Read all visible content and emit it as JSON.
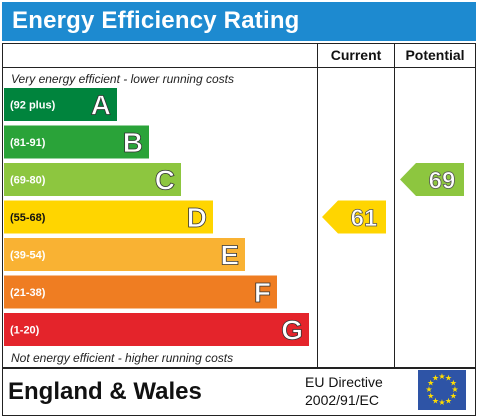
{
  "title": "Energy Efficiency Rating",
  "columns": {
    "current": "Current",
    "potential": "Potential"
  },
  "notes": {
    "top": "Very energy efficient - lower running costs",
    "bottom": "Not energy efficient - higher running costs"
  },
  "footer": {
    "region": "England & Wales",
    "directive_line1": "EU Directive",
    "directive_line2": "2002/91/EC"
  },
  "chart_data": {
    "type": "bar",
    "categories": [
      "A",
      "B",
      "C",
      "D",
      "E",
      "F",
      "G"
    ],
    "ranges": [
      "(92 plus)",
      "(81-91)",
      "(69-80)",
      "(55-68)",
      "(39-54)",
      "(21-38)",
      "(1-20)"
    ],
    "colors": [
      "#00843d",
      "#2aa339",
      "#8dc63f",
      "#ffd500",
      "#f9b233",
      "#ef7d22",
      "#e4242b"
    ],
    "current": {
      "value": 61,
      "band": "D",
      "color": "#ffd500"
    },
    "potential": {
      "value": 69,
      "band": "C",
      "color": "#8dc63f"
    }
  }
}
